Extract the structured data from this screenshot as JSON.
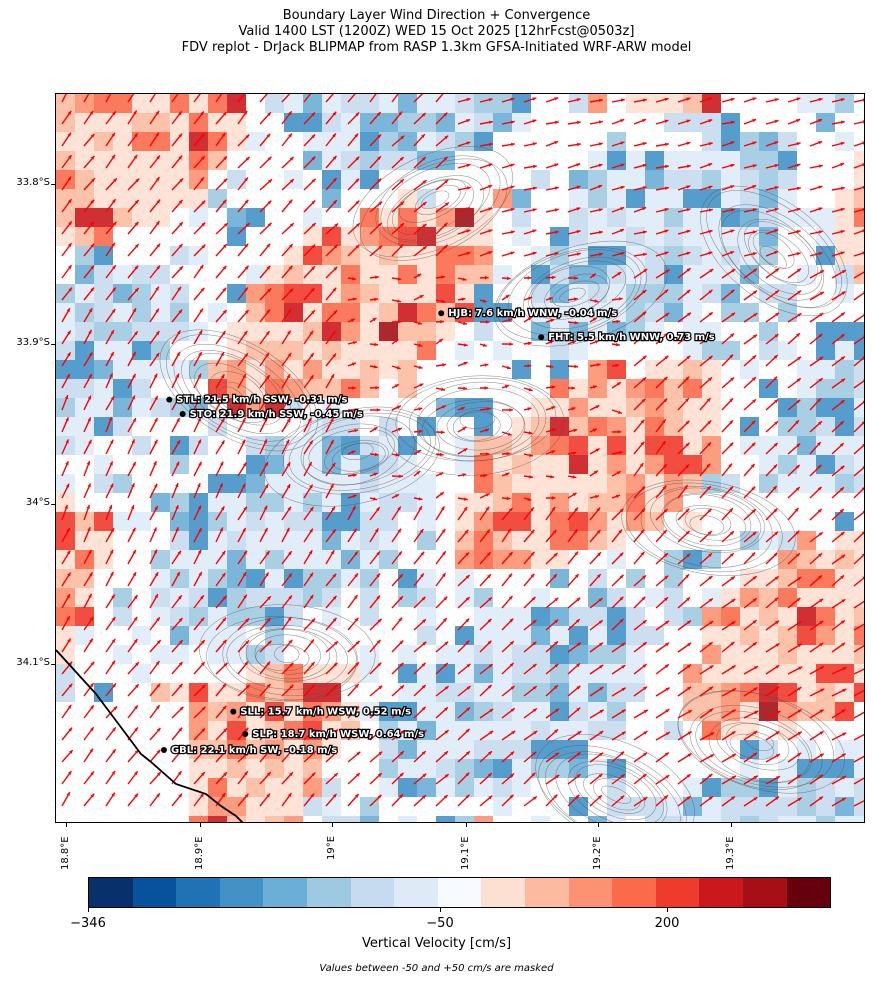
{
  "title": {
    "line1": "Boundary Layer Wind Direction + Convergence",
    "line2": "Valid 1400 LST (1200Z) WED 15 Oct 2025 [12hrFcst@0503z]",
    "line3": "FDV replot - DrJack BLIPMAP from RASP 1.3km GFSA-Initiated WRF-ARW model"
  },
  "map": {
    "lat_labels": [
      "33.8°S",
      "33.9°S",
      "34°S",
      "34.1°S"
    ],
    "lon_labels": [
      "18.8°E",
      "18.9°E",
      "19°E",
      "19.1°E",
      "19.2°E",
      "19.3°E"
    ],
    "arrow_color": "#ff0000",
    "stations": [
      {
        "id": "HJB",
        "label": "HJB: 7.6 km/h WNW, -0.04 m/s",
        "lon": 19.081,
        "lat": -33.884
      },
      {
        "id": "FHT",
        "label": "FHT: 5.5 km/h WNW, 0.73 m/s",
        "lon": 19.156,
        "lat": -33.899
      },
      {
        "id": "STL",
        "label": "STL: 21.5 km/h SSW, -0.31 m/s",
        "lon": 18.877,
        "lat": -33.938
      },
      {
        "id": "STO",
        "label": "STO: 21.9 km/h SSW, -0.45 m/s",
        "lon": 18.887,
        "lat": -33.947
      },
      {
        "id": "SLL",
        "label": "SLL: 15.7 km/h WSW, 0.52 m/s",
        "lon": 18.925,
        "lat": -34.133
      },
      {
        "id": "SLP",
        "label": "SLP: 18.7 km/h WSW, 0.64 m/s",
        "lon": 18.934,
        "lat": -34.147
      },
      {
        "id": "GBL",
        "label": "GBL: 22.1 km/h SW, -0.18 m/s",
        "lon": 18.873,
        "lat": -34.157
      }
    ]
  },
  "colorbar": {
    "label": "Vertical Velocity [cm/s]",
    "ticks": [
      "−346",
      "−50",
      "200"
    ],
    "colors": [
      "#08306b",
      "#08519c",
      "#2171b5",
      "#4292c6",
      "#6baed6",
      "#9ecae1",
      "#c6dbef",
      "#deebf7",
      "#f7fbff",
      "#fee0d2",
      "#fcbba1",
      "#fc9272",
      "#fb6a4a",
      "#ef3b2c",
      "#cb181d",
      "#a50f15",
      "#67000d"
    ]
  },
  "note": "Values between -50 and +50 cm/s are masked"
}
